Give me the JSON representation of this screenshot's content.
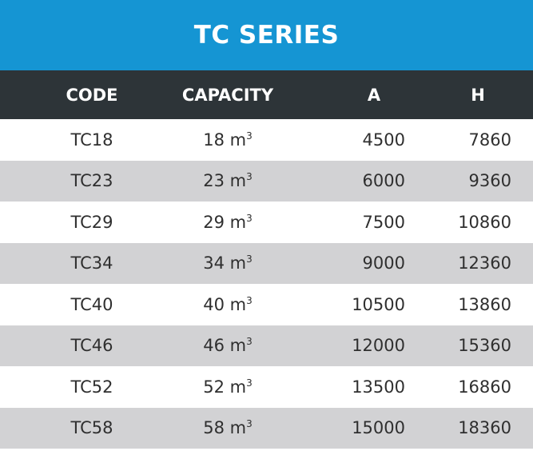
{
  "title": "TC SERIES",
  "headers": {
    "code": "CODE",
    "capacity": "CAPACITY",
    "a": "A",
    "h": "H"
  },
  "unit": "m",
  "unit_sup": "3",
  "rows": [
    {
      "code": "TC18",
      "capacity": "18",
      "a": "4500",
      "h": "7860"
    },
    {
      "code": "TC23",
      "capacity": "23",
      "a": "6000",
      "h": "9360"
    },
    {
      "code": "TC29",
      "capacity": "29",
      "a": "7500",
      "h": "10860"
    },
    {
      "code": "TC34",
      "capacity": "34",
      "a": "9000",
      "h": "12360"
    },
    {
      "code": "TC40",
      "capacity": "40",
      "a": "10500",
      "h": "13860"
    },
    {
      "code": "TC46",
      "capacity": "46",
      "a": "12000",
      "h": "15360"
    },
    {
      "code": "TC52",
      "capacity": "52",
      "a": "13500",
      "h": "16860"
    },
    {
      "code": "TC58",
      "capacity": "58",
      "a": "15000",
      "h": "18360"
    }
  ],
  "colors": {
    "title_bg": "#1595d3",
    "header_bg": "#2d3438",
    "alt_row_bg": "#d2d2d4"
  }
}
